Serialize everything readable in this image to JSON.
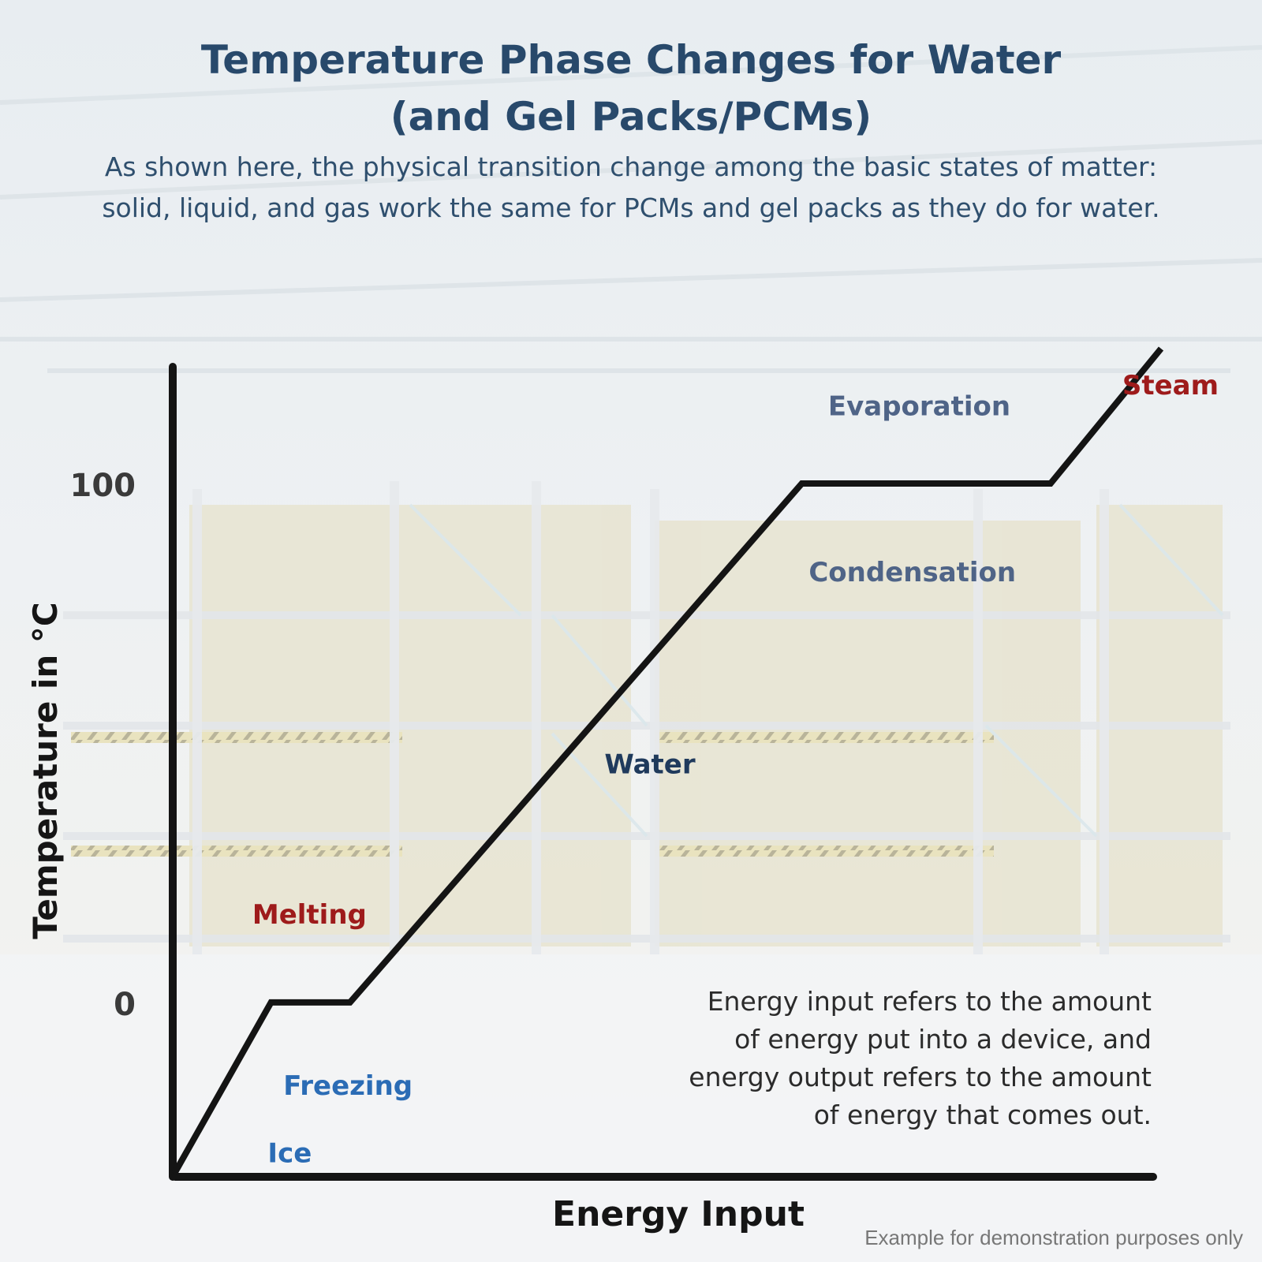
{
  "header": {
    "title_line1": "Temperature Phase Changes for Water",
    "title_line2": "(and Gel Packs/PCMs)",
    "subtitle": "As shown here, the physical transition change among the basic states of matter: solid, liquid, and gas work the same for PCMs and gel packs as they do for water."
  },
  "note": "Energy input refers to the amount of energy put into a device, and energy output refers to the amount of energy that comes out.",
  "footnote": "Example for demonstration purposes only",
  "colors": {
    "line": "#141414",
    "red_label": "#9e1b1b",
    "blue_label": "#2b6cb5",
    "slate_label": "#4f6487",
    "navy_label": "#1f3a5c"
  },
  "chart_data": {
    "type": "line",
    "xlabel": "Energy Input",
    "ylabel": "Temperature in °C",
    "yticks": [
      0,
      100
    ],
    "xlim": [
      0,
      100
    ],
    "ylim": [
      -33,
      126
    ],
    "grid": false,
    "series": [
      {
        "x": [
          0,
          9.8,
          17.8,
          63.6,
          88.8,
          100
        ],
        "y": [
          -33,
          0,
          0,
          100,
          100,
          126
        ]
      }
    ],
    "annotations": [
      {
        "text": "Melting",
        "x": 13.7,
        "y": 17,
        "color": "red_label"
      },
      {
        "text": "Freezing",
        "x": 17.6,
        "y": -16,
        "color": "blue_label"
      },
      {
        "text": "Ice",
        "x": 11.7,
        "y": -29,
        "color": "blue_label"
      },
      {
        "text": "Water",
        "x": 48.2,
        "y": 46,
        "color": "navy_label"
      },
      {
        "text": "Evaporation",
        "x": 75.5,
        "y": 115,
        "color": "slate_label"
      },
      {
        "text": "Condensation",
        "x": 74.8,
        "y": 83,
        "color": "slate_label"
      },
      {
        "text": "Steam",
        "x": 100,
        "y": 119,
        "color": "red_label"
      }
    ]
  }
}
